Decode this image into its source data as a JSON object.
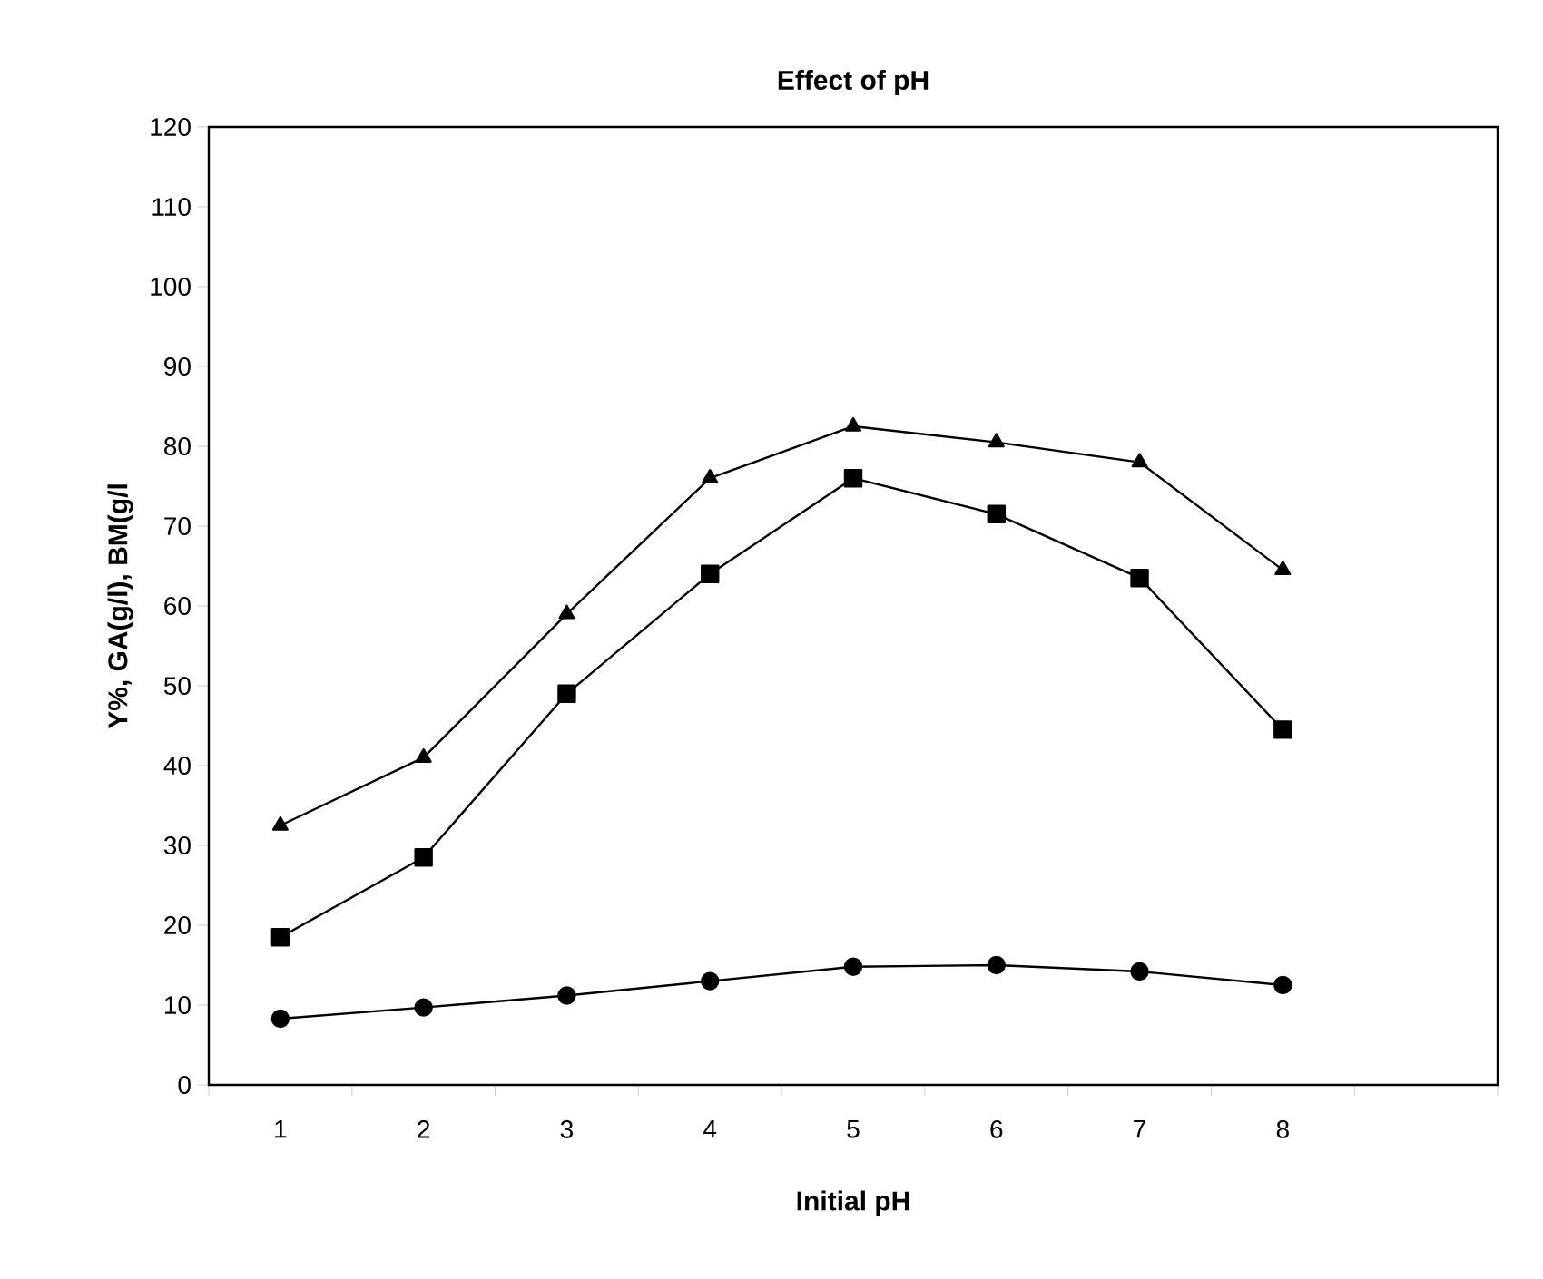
{
  "chart_data": {
    "type": "line",
    "title": "Effect of pH",
    "xlabel": "Initial pH",
    "ylabel": "Y%, GA(g/l), BM(g/l",
    "categories": [
      "1",
      "2",
      "3",
      "4",
      "5",
      "6",
      "7",
      "8",
      null
    ],
    "series": [
      {
        "color": "#000000",
        "marker": "triangle",
        "values": [
          32.5,
          41,
          59,
          76,
          82.5,
          80.5,
          78,
          64.5,
          null
        ]
      },
      {
        "color": "#000000",
        "marker": "square",
        "values": [
          18.5,
          28.5,
          49,
          64,
          76,
          71.5,
          63.5,
          44.5,
          null
        ]
      },
      {
        "color": "#000000",
        "marker": "circle",
        "values": [
          8.3,
          9.7,
          11.2,
          13,
          14.8,
          15,
          14.2,
          12.5,
          null
        ]
      }
    ],
    "ylim": [
      0,
      120
    ],
    "yticks": [
      0,
      10,
      20,
      30,
      40,
      50,
      60,
      70,
      80,
      90,
      100,
      110,
      120
    ],
    "grid": false,
    "line_style": "solid"
  }
}
